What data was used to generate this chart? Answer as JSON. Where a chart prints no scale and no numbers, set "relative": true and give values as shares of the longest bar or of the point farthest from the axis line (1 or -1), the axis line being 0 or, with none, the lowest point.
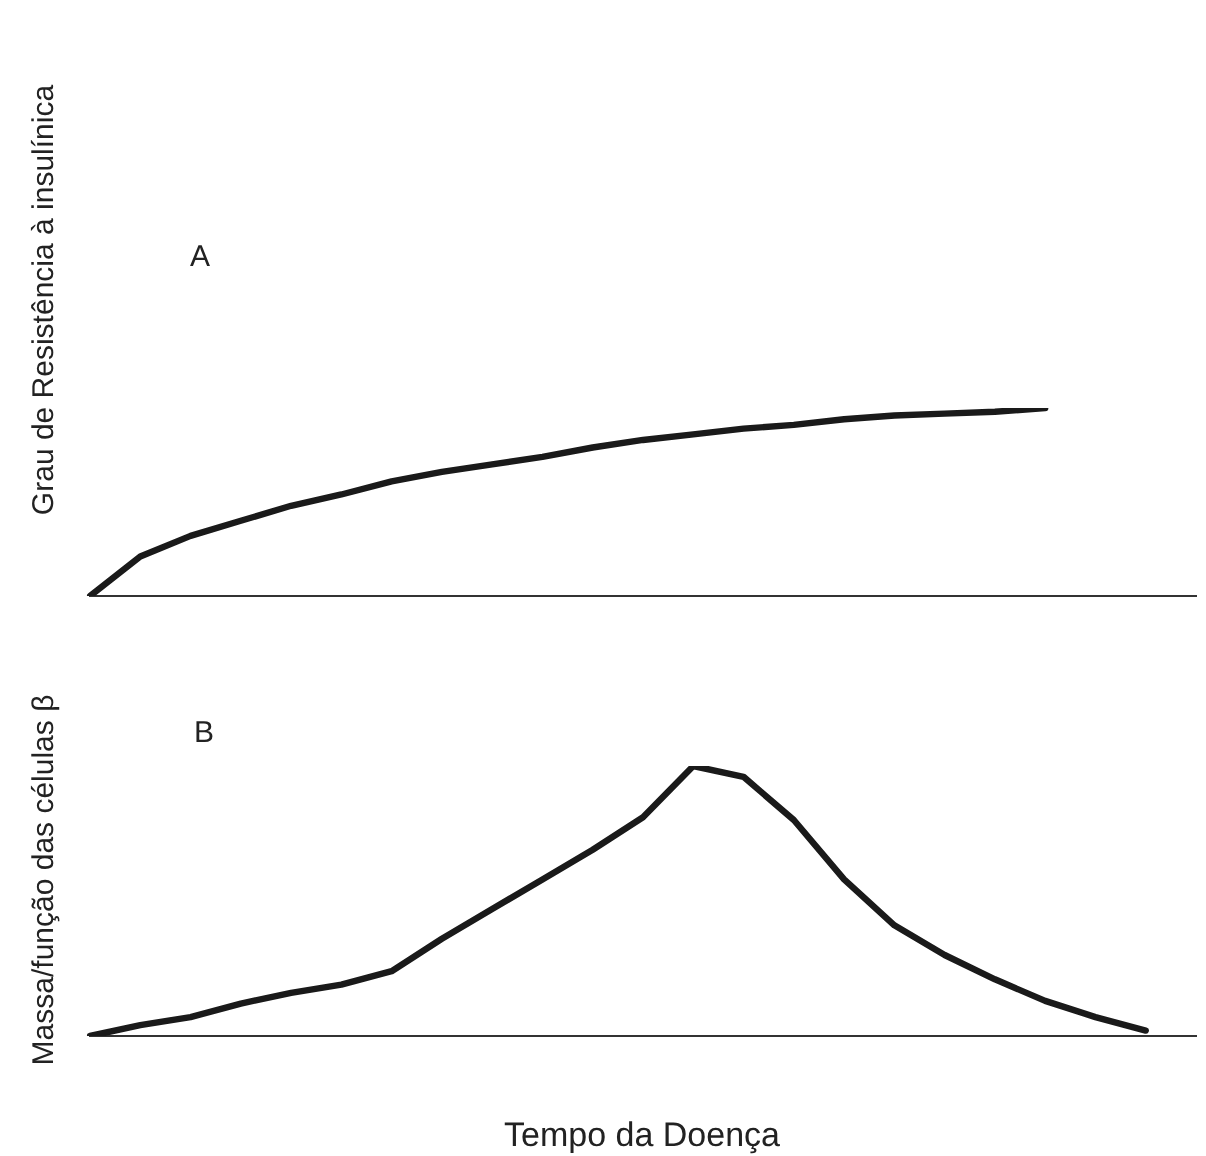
{
  "chart_data": [
    {
      "type": "line",
      "ylabel": "Grau de Resistência à insulínica",
      "annotations": [
        "A"
      ],
      "relative": true,
      "grid": false,
      "legend": false,
      "marker": "none",
      "line_style": "solid",
      "categories": [
        null,
        null,
        null,
        null,
        null,
        null,
        null,
        null,
        null,
        null,
        null,
        null,
        null,
        null,
        null,
        null,
        null,
        null,
        null,
        null,
        null,
        null,
        null
      ],
      "series": [
        {
          "color": "#1a1a1a",
          "values": [
            0,
            0.21,
            0.32,
            0.4,
            0.48,
            0.54,
            0.61,
            0.66,
            0.7,
            0.74,
            0.79,
            0.83,
            0.86,
            0.89,
            0.91,
            0.94,
            0.96,
            0.97,
            0.98,
            1,
            null,
            null,
            null
          ]
        }
      ]
    },
    {
      "type": "line",
      "ylabel": "Massa/função das células β",
      "xlabel": "Tempo da Doença",
      "annotations": [
        "B"
      ],
      "relative": true,
      "grid": false,
      "legend": false,
      "marker": "none",
      "line_style": "solid",
      "categories": [
        null,
        null,
        null,
        null,
        null,
        null,
        null,
        null,
        null,
        null,
        null,
        null,
        null,
        null,
        null,
        null,
        null,
        null,
        null,
        null,
        null,
        null,
        null
      ],
      "series": [
        {
          "color": "#1a1a1a",
          "values": [
            0,
            0.04,
            0.07,
            0.12,
            0.16,
            0.19,
            0.24,
            0.36,
            0.47,
            0.58,
            0.69,
            0.81,
            1,
            0.96,
            0.8,
            0.58,
            0.41,
            0.3,
            0.21,
            0.13,
            0.07,
            0.02,
            null
          ]
        }
      ]
    }
  ]
}
